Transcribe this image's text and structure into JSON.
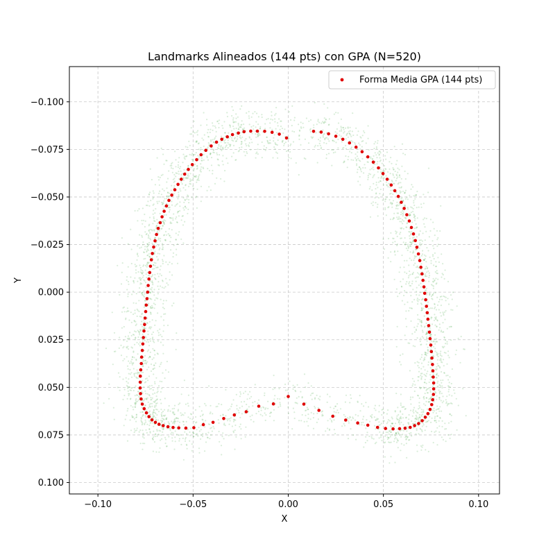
{
  "chart_data": {
    "type": "scatter",
    "title": "Landmarks Alineados (144 pts) con GPA (N=520)",
    "xlabel": "X",
    "ylabel": "Y",
    "xlim": [
      -0.115,
      0.111
    ],
    "ylim": [
      0.106,
      -0.1185
    ],
    "y_inverted": true,
    "grid": true,
    "grid_style": "dashed",
    "legend_position": "top-right",
    "x_ticks": [
      -0.1,
      -0.05,
      0.0,
      0.05,
      0.1
    ],
    "x_tick_labels": [
      "−0.10",
      "−0.05",
      "0.00",
      "0.05",
      "0.10"
    ],
    "y_ticks": [
      -0.1,
      -0.075,
      -0.05,
      -0.025,
      0.0,
      0.025,
      0.05,
      0.075,
      0.1
    ],
    "y_tick_labels": [
      "−0.100",
      "−0.075",
      "−0.050",
      "−0.025",
      "0.000",
      "0.025",
      "0.050",
      "0.075",
      "0.100"
    ],
    "colors": {
      "mean_shape": "#e00000",
      "aligned_cloud": "#2a9a2a"
    },
    "series": [
      {
        "name": "Forma Media GPA (144 pts)",
        "kind": "mean_shape",
        "points": [
          [
            -0.0009,
            -0.081
          ],
          [
            -0.0047,
            -0.083
          ],
          [
            -0.0085,
            -0.084
          ],
          [
            -0.0124,
            -0.0845
          ],
          [
            -0.0162,
            -0.0846
          ],
          [
            -0.0197,
            -0.0846
          ],
          [
            -0.0232,
            -0.0843
          ],
          [
            -0.0262,
            -0.0836
          ],
          [
            -0.0293,
            -0.0828
          ],
          [
            -0.032,
            -0.0816
          ],
          [
            -0.0349,
            -0.0803
          ],
          [
            -0.0377,
            -0.0788
          ],
          [
            -0.0405,
            -0.0768
          ],
          [
            -0.0433,
            -0.0745
          ],
          [
            -0.0458,
            -0.0722
          ],
          [
            -0.0481,
            -0.0696
          ],
          [
            -0.0504,
            -0.067
          ],
          [
            -0.0525,
            -0.0645
          ],
          [
            -0.0544,
            -0.062
          ],
          [
            -0.0562,
            -0.0593
          ],
          [
            -0.0579,
            -0.0566
          ],
          [
            -0.0596,
            -0.0538
          ],
          [
            -0.0612,
            -0.051
          ],
          [
            -0.0627,
            -0.0482
          ],
          [
            -0.064,
            -0.0453
          ],
          [
            -0.0652,
            -0.0425
          ],
          [
            -0.0663,
            -0.0396
          ],
          [
            -0.0673,
            -0.0365
          ],
          [
            -0.0683,
            -0.0335
          ],
          [
            -0.0692,
            -0.0303
          ],
          [
            -0.07,
            -0.027
          ],
          [
            -0.0707,
            -0.0237
          ],
          [
            -0.0714,
            -0.0203
          ],
          [
            -0.0719,
            -0.017
          ],
          [
            -0.0724,
            -0.0136
          ],
          [
            -0.0728,
            -0.0103
          ],
          [
            -0.0732,
            -0.0069
          ],
          [
            -0.0736,
            -0.0035
          ],
          [
            -0.0739,
            0.0
          ],
          [
            -0.0742,
            0.0034
          ],
          [
            -0.0746,
            0.0068
          ],
          [
            -0.0749,
            0.0102
          ],
          [
            -0.0752,
            0.0136
          ],
          [
            -0.0755,
            0.017
          ],
          [
            -0.0758,
            0.0204
          ],
          [
            -0.0761,
            0.0238
          ],
          [
            -0.0764,
            0.0272
          ],
          [
            -0.0767,
            0.0306
          ],
          [
            -0.077,
            0.0341
          ],
          [
            -0.0772,
            0.0375
          ],
          [
            -0.0775,
            0.0408
          ],
          [
            -0.0777,
            0.0441
          ],
          [
            -0.0778,
            0.0473
          ],
          [
            -0.0778,
            0.0503
          ],
          [
            -0.0776,
            0.0533
          ],
          [
            -0.0773,
            0.0561
          ],
          [
            -0.0767,
            0.0588
          ],
          [
            -0.0757,
            0.0612
          ],
          [
            -0.0745,
            0.0634
          ],
          [
            -0.0732,
            0.0654
          ],
          [
            -0.0716,
            0.0671
          ],
          [
            -0.0698,
            0.0684
          ],
          [
            -0.0679,
            0.0694
          ],
          [
            -0.0657,
            0.0701
          ],
          [
            -0.0632,
            0.0707
          ],
          [
            -0.0605,
            0.0711
          ],
          [
            -0.0575,
            0.0713
          ],
          [
            -0.0538,
            0.0714
          ],
          [
            -0.0496,
            0.0712
          ],
          [
            -0.0446,
            0.0696
          ],
          [
            -0.0395,
            0.0684
          ],
          [
            -0.0339,
            0.0664
          ],
          [
            -0.0283,
            0.0645
          ],
          [
            -0.0221,
            0.0628
          ],
          [
            -0.0155,
            0.0599
          ],
          [
            -0.0078,
            0.0587
          ],
          [
            0.0,
            0.0548
          ],
          [
            0.0082,
            0.0588
          ],
          [
            0.0161,
            0.0621
          ],
          [
            0.0234,
            0.0652
          ],
          [
            0.0302,
            0.0672
          ],
          [
            0.0365,
            0.0687
          ],
          [
            0.0418,
            0.0699
          ],
          [
            0.0469,
            0.071
          ],
          [
            0.0511,
            0.0716
          ],
          [
            0.0551,
            0.0718
          ],
          [
            0.0585,
            0.0717
          ],
          [
            0.0614,
            0.0715
          ],
          [
            0.0641,
            0.071
          ],
          [
            0.0664,
            0.0701
          ],
          [
            0.0685,
            0.069
          ],
          [
            0.0704,
            0.0675
          ],
          [
            0.072,
            0.0657
          ],
          [
            0.0734,
            0.0638
          ],
          [
            0.0745,
            0.0616
          ],
          [
            0.0754,
            0.0591
          ],
          [
            0.0759,
            0.0565
          ],
          [
            0.0763,
            0.0537
          ],
          [
            0.0764,
            0.0508
          ],
          [
            0.0764,
            0.0477
          ],
          [
            0.0762,
            0.0446
          ],
          [
            0.076,
            0.0413
          ],
          [
            0.0758,
            0.038
          ],
          [
            0.0755,
            0.0346
          ],
          [
            0.0752,
            0.0312
          ],
          [
            0.0749,
            0.0278
          ],
          [
            0.0745,
            0.0244
          ],
          [
            0.0742,
            0.021
          ],
          [
            0.0738,
            0.0176
          ],
          [
            0.0734,
            0.0142
          ],
          [
            0.073,
            0.0108
          ],
          [
            0.0726,
            0.0074
          ],
          [
            0.0722,
            0.004
          ],
          [
            0.0717,
            0.0006
          ],
          [
            0.0713,
            -0.0028
          ],
          [
            0.0708,
            -0.0062
          ],
          [
            0.0703,
            -0.0096
          ],
          [
            0.0697,
            -0.0131
          ],
          [
            0.0691,
            -0.0166
          ],
          [
            0.0684,
            -0.0201
          ],
          [
            0.0676,
            -0.0236
          ],
          [
            0.0668,
            -0.0271
          ],
          [
            0.0658,
            -0.0306
          ],
          [
            0.0647,
            -0.034
          ],
          [
            0.0636,
            -0.0374
          ],
          [
            0.0623,
            -0.0407
          ],
          [
            0.0609,
            -0.044
          ],
          [
            0.0594,
            -0.0472
          ],
          [
            0.0578,
            -0.0503
          ],
          [
            0.056,
            -0.0533
          ],
          [
            0.0541,
            -0.0563
          ],
          [
            0.052,
            -0.0593
          ],
          [
            0.0498,
            -0.0623
          ],
          [
            0.0474,
            -0.0653
          ],
          [
            0.0447,
            -0.0683
          ],
          [
            0.0418,
            -0.0711
          ],
          [
            0.0388,
            -0.0738
          ],
          [
            0.0356,
            -0.0762
          ],
          [
            0.0322,
            -0.0784
          ],
          [
            0.0287,
            -0.0803
          ],
          [
            0.025,
            -0.0819
          ],
          [
            0.0212,
            -0.0832
          ],
          [
            0.0173,
            -0.0841
          ],
          [
            0.0133,
            -0.0845
          ]
        ]
      }
    ]
  }
}
